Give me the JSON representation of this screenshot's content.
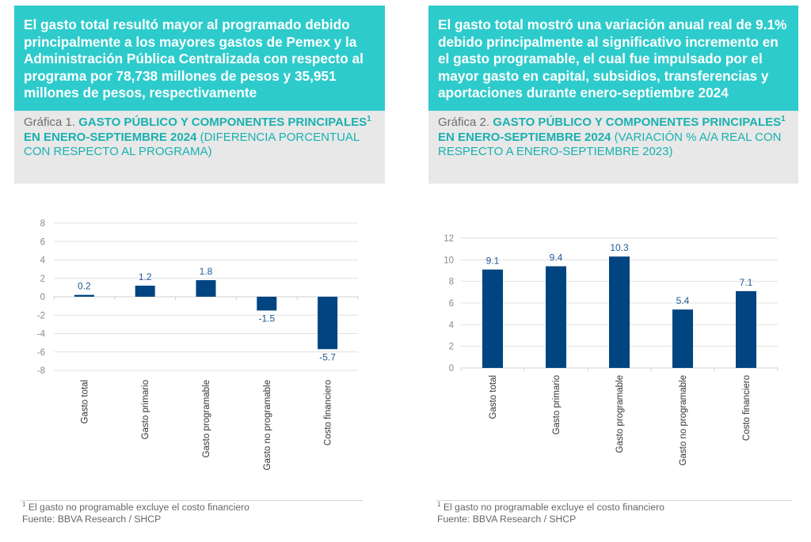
{
  "panels": [
    {
      "headline": "El gasto total resultó mayor al programado debido principalmente a los mayores gastos de Pemex y la Administración Pública Centralizada con respecto al programa por 78,738 millones de pesos y 35,951 millones de pesos, respectivamente",
      "caption_prefix": "Gráfica 1. ",
      "caption_title_a": "GASTO PÚBLICO Y COMPONENTES PRINCIPALES",
      "caption_title_sup": "1",
      "caption_title_b": " EN ENERO-SEPTIEMBRE 2024",
      "caption_subtitle": "(DIFERENCIA PORCENTUAL CON RESPECTO AL PROGRAMA)",
      "footnote_marker": "1",
      "footnote": " El gasto no programable excluye el costo financiero",
      "source": "Fuente: BBVA Research / SHCP"
    },
    {
      "headline": "El gasto total mostró una variación anual real de 9.1% debido principalmente al significativo incremento en el gasto programable, el cual fue impulsado por el mayor gasto en capital, subsidios, transferencias y aportaciones durante enero-septiembre 2024",
      "caption_prefix": "Gráfica 2. ",
      "caption_title_a": "GASTO PÚBLICO Y COMPONENTES PRINCIPALES",
      "caption_title_sup": "1",
      "caption_title_b": " EN ENERO-SEPTIEMBRE 2024",
      "caption_subtitle": "(VARIACIÓN % A/A REAL CON RESPECTO A ENERO-SEPTIEMBRE 2023)",
      "footnote_marker": "1",
      "footnote": " El gasto no programable excluye el costo financiero",
      "source": "Fuente: BBVA Research / SHCP"
    }
  ],
  "colors": {
    "headline_bg": "#2ecbcc",
    "caption_bg": "#e8e8e8",
    "accent_text": "#19b1b1",
    "bar": "#004481",
    "data_label": "#1f5a96",
    "grid": "#e0e0e0",
    "tick_label": "#8a8a8a"
  },
  "chart_data": [
    {
      "type": "bar",
      "title": "Gráfica 1. GASTO PÚBLICO Y COMPONENTES PRINCIPALES¹ EN ENERO-SEPTIEMBRE 2024",
      "subtitle": "(DIFERENCIA PORCENTUAL CON RESPECTO AL PROGRAMA)",
      "categories": [
        "Gasto total",
        "Gasto primario",
        "Gasto programable",
        "Gasto no programable",
        "Costo financiero"
      ],
      "values": [
        0.2,
        1.2,
        1.8,
        -1.5,
        -5.7
      ],
      "data_labels": [
        "0.2",
        "1.2",
        "1.8",
        "-1.5",
        "-5.7"
      ],
      "xlabel": "",
      "ylabel": "",
      "ylim": [
        -8,
        8
      ],
      "yticks": [
        8,
        6,
        4,
        2,
        0,
        -2,
        -4,
        -6,
        -8
      ],
      "grid": true,
      "legend": "none"
    },
    {
      "type": "bar",
      "title": "Gráfica 2. GASTO PÚBLICO Y COMPONENTES PRINCIPALES¹ EN ENERO-SEPTIEMBRE 2024",
      "subtitle": "(VARIACIÓN % A/A REAL CON RESPECTO A ENERO-SEPTIEMBRE 2023)",
      "categories": [
        "Gasto total",
        "Gasto primario",
        "Gasto programable",
        "Gasto no programable",
        "Costo financiero"
      ],
      "values": [
        9.1,
        9.4,
        10.3,
        5.4,
        7.1
      ],
      "data_labels": [
        "9.1",
        "9.4",
        "10.3",
        "5.4",
        "7.1"
      ],
      "xlabel": "",
      "ylabel": "",
      "ylim": [
        0,
        12
      ],
      "yticks": [
        12,
        10,
        8,
        6,
        4,
        2,
        0
      ],
      "grid": true,
      "legend": "none"
    }
  ]
}
